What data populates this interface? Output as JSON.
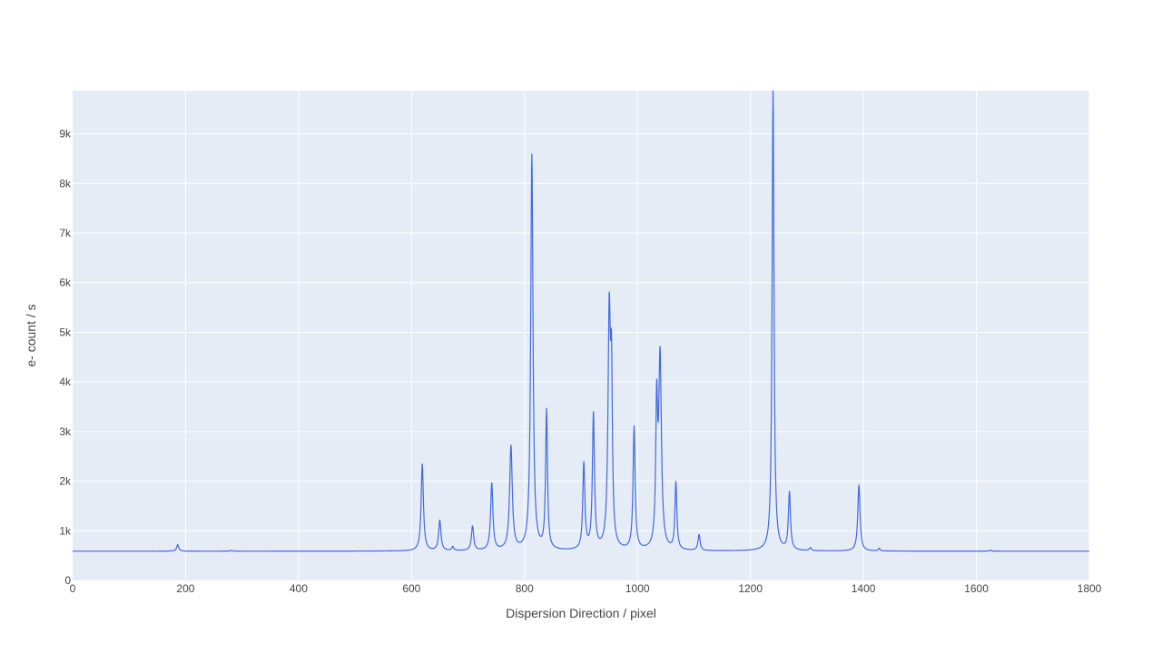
{
  "chart_data": {
    "type": "line",
    "title": "",
    "xlabel": "Dispersion Direction / pixel",
    "ylabel": "e- count / s",
    "xlim": [
      0,
      1800
    ],
    "ylim": [
      0,
      9870
    ],
    "x_ticks": [
      0,
      200,
      400,
      600,
      800,
      1000,
      1200,
      1400,
      1600,
      1800
    ],
    "x_tick_labels": [
      "0",
      "200",
      "400",
      "600",
      "800",
      "1000",
      "1200",
      "1400",
      "1600",
      "1800"
    ],
    "y_ticks": [
      0,
      1000,
      2000,
      3000,
      4000,
      5000,
      6000,
      7000,
      8000,
      9000
    ],
    "y_tick_labels": [
      "0",
      "1k",
      "2k",
      "3k",
      "4k",
      "5k",
      "6k",
      "7k",
      "8k",
      "9k"
    ],
    "grid": true,
    "background_color": "#e5ecf6",
    "line_color": "#4169e1",
    "series": [
      {
        "baseline": 590,
        "peaks": [
          {
            "x": 186,
            "y": 720,
            "width": 2.2
          },
          {
            "x": 281,
            "y": 605,
            "width": 2.0
          },
          {
            "x": 619,
            "y": 2340,
            "width": 2.4
          },
          {
            "x": 650,
            "y": 1200,
            "width": 2.4
          },
          {
            "x": 673,
            "y": 670,
            "width": 2.0
          },
          {
            "x": 708,
            "y": 1080,
            "width": 2.4
          },
          {
            "x": 742,
            "y": 1940,
            "width": 2.4
          },
          {
            "x": 776,
            "y": 2680,
            "width": 2.8
          },
          {
            "x": 813,
            "y": 8560,
            "width": 2.4
          },
          {
            "x": 839,
            "y": 3390,
            "width": 2.0
          },
          {
            "x": 905,
            "y": 2320,
            "width": 2.2
          },
          {
            "x": 922,
            "y": 3310,
            "width": 2.2
          },
          {
            "x": 950,
            "y": 5270,
            "width": 2.6
          },
          {
            "x": 954,
            "y": 3600,
            "width": 1.8
          },
          {
            "x": 994,
            "y": 3060,
            "width": 2.2
          },
          {
            "x": 1034,
            "y": 3350,
            "width": 2.0
          },
          {
            "x": 1040,
            "y": 4420,
            "width": 2.8
          },
          {
            "x": 1068,
            "y": 1940,
            "width": 2.0
          },
          {
            "x": 1109,
            "y": 910,
            "width": 2.2
          },
          {
            "x": 1240,
            "y": 9870,
            "width": 2.0
          },
          {
            "x": 1269,
            "y": 1750,
            "width": 2.2
          },
          {
            "x": 1306,
            "y": 650,
            "width": 2.0
          },
          {
            "x": 1392,
            "y": 1920,
            "width": 2.4
          },
          {
            "x": 1428,
            "y": 640,
            "width": 1.8
          },
          {
            "x": 1625,
            "y": 610,
            "width": 1.8
          }
        ]
      }
    ]
  }
}
